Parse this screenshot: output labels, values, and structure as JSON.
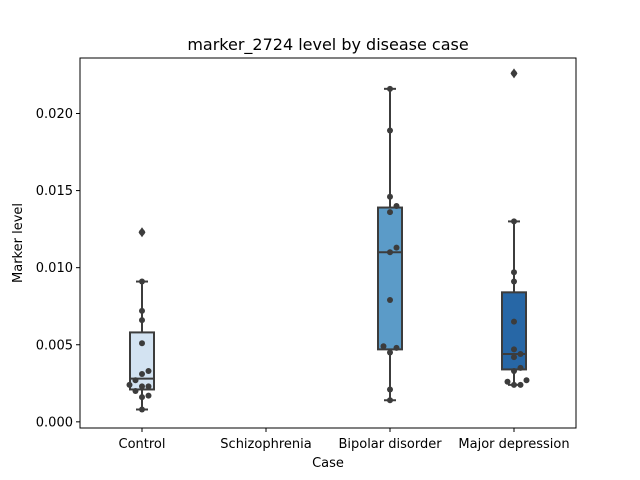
{
  "chart_data": {
    "type": "box",
    "title": "marker_2724 level by disease case",
    "xlabel": "Case",
    "ylabel": "Marker level",
    "ylim": [
      -0.0004,
      0.0236
    ],
    "yticks": [
      0.0,
      0.005,
      0.01,
      0.015,
      0.02
    ],
    "ytick_labels": [
      "0.000",
      "0.005",
      "0.010",
      "0.015",
      "0.020"
    ],
    "categories": [
      "Control",
      "Schizophrenia",
      "Bipolar disorder",
      "Major depression"
    ],
    "colors": [
      "#d3e3f2",
      "#ffffff",
      "#5b9bc8",
      "#2767a6"
    ],
    "grid": false,
    "boxes": [
      {
        "category": "Control",
        "q1": 0.0021,
        "median": 0.0028,
        "q3": 0.0058,
        "whisker_low": 0.0008,
        "whisker_high": 0.0091,
        "outliers": [
          0.0123
        ]
      },
      {
        "category": "Schizophrenia",
        "empty": true
      },
      {
        "category": "Bipolar disorder",
        "q1": 0.0047,
        "median": 0.011,
        "q3": 0.0139,
        "whisker_low": 0.0014,
        "whisker_high": 0.0216,
        "outliers": []
      },
      {
        "category": "Major depression",
        "q1": 0.0034,
        "median": 0.0044,
        "q3": 0.0084,
        "whisker_low": 0.0024,
        "whisker_high": 0.013,
        "outliers": [
          0.0226
        ]
      }
    ],
    "points": [
      {
        "category": "Control",
        "values": [
          0.0008,
          0.0016,
          0.0017,
          0.002,
          0.0023,
          0.0023,
          0.0024,
          0.0027,
          0.0031,
          0.0033,
          0.0051,
          0.0066,
          0.0072,
          0.0091,
          0.0123
        ]
      },
      {
        "category": "Bipolar disorder",
        "values": [
          0.0014,
          0.0021,
          0.0045,
          0.0048,
          0.0049,
          0.0079,
          0.011,
          0.0113,
          0.0136,
          0.014,
          0.0146,
          0.0189,
          0.0216
        ]
      },
      {
        "category": "Major depression",
        "values": [
          0.0024,
          0.0024,
          0.0026,
          0.0027,
          0.0033,
          0.0035,
          0.0042,
          0.0044,
          0.0047,
          0.0065,
          0.0091,
          0.0097,
          0.013,
          0.0226
        ]
      }
    ]
  }
}
